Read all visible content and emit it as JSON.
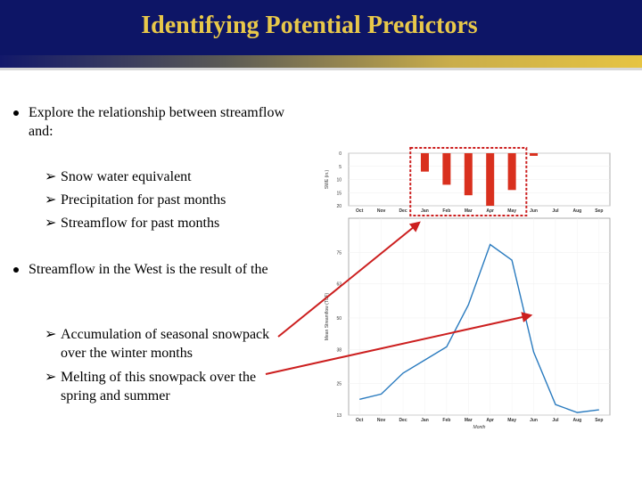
{
  "header": {
    "title": "Identifying Potential Predictors"
  },
  "bullets": [
    {
      "text": "Explore the relationship between streamflow and:",
      "subs": [
        "Snow water equivalent",
        "Precipitation for past months",
        "Streamflow for past months"
      ]
    },
    {
      "text": "Streamflow in the West is the result of the",
      "subs": [
        "Accumulation of seasonal snowpack over the winter months",
        "Melting of this snowpack over the spring and summer"
      ]
    }
  ],
  "colors": {
    "header_bg": "#0d1566",
    "title": "#e8c84a",
    "bar": "#d9301e",
    "line": "#2a7bbf",
    "highlight": "#cc1f1f"
  },
  "chart_data": [
    {
      "type": "bar",
      "categories": [
        "Oct",
        "Nov",
        "Dec",
        "Jan",
        "Feb",
        "Mar",
        "Apr",
        "May",
        "Jun",
        "Jul",
        "Aug",
        "Sep"
      ],
      "values": [
        0,
        0,
        0,
        7,
        12,
        16,
        20,
        14,
        1,
        0,
        0,
        0
      ],
      "ylabel": "SWE (in.)",
      "yticks": [
        "0",
        "5",
        "10",
        "15",
        "20"
      ],
      "ylim": [
        0,
        20
      ],
      "inverted": true,
      "highlighted_range": [
        "Jan",
        "May"
      ]
    },
    {
      "type": "line",
      "categories": [
        "Oct",
        "Nov",
        "Dec",
        "Jan",
        "Feb",
        "Mar",
        "Apr",
        "May",
        "Jun",
        "Jul",
        "Aug",
        "Sep"
      ],
      "values": [
        19,
        21,
        29,
        34,
        39,
        55,
        78,
        72,
        37,
        17,
        14,
        15
      ],
      "ylabel": "Mean Streamflow (TCF)",
      "xlabel": "Month",
      "yticks": [
        "13",
        "25",
        "38",
        "50",
        "63",
        "75"
      ],
      "ylim": [
        13,
        88
      ],
      "grid": true
    }
  ]
}
